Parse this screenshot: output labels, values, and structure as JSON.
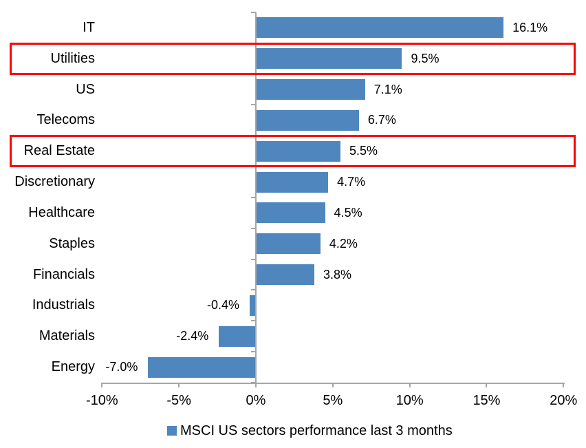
{
  "chart_data": {
    "type": "bar",
    "orientation": "horizontal",
    "title": "",
    "categories": [
      "IT",
      "Utilities",
      "US",
      "Telecoms",
      "Real Estate",
      "Discretionary",
      "Healthcare",
      "Staples",
      "Financials",
      "Industrials",
      "Materials",
      "Energy"
    ],
    "values": [
      16.1,
      9.5,
      7.1,
      6.7,
      5.5,
      4.7,
      4.5,
      4.2,
      3.8,
      -0.4,
      -2.4,
      -7.0
    ],
    "value_labels": [
      "16.1%",
      "9.5%",
      "7.1%",
      "6.7%",
      "5.5%",
      "4.7%",
      "4.5%",
      "4.2%",
      "3.8%",
      "-0.4%",
      "-2.4%",
      "-7.0%"
    ],
    "highlighted_categories": [
      "Utilities",
      "Real Estate"
    ],
    "xlim": [
      -10,
      20
    ],
    "x_ticks": [
      {
        "value": -10,
        "label": "-10%"
      },
      {
        "value": -5,
        "label": "-5%"
      },
      {
        "value": 0,
        "label": "0%"
      },
      {
        "value": 5,
        "label": "5%"
      },
      {
        "value": 10,
        "label": "10%"
      },
      {
        "value": 15,
        "label": "15%"
      },
      {
        "value": 20,
        "label": "20%"
      }
    ],
    "grid": false,
    "legend_position": "bottom",
    "legend": "MSCI US sectors performance last 3 months",
    "colors": {
      "bar": "#4E86BD",
      "highlight_border": "#FF0000",
      "axis": "#A6A6A6",
      "text": "#000000",
      "background": "#FFFFFF"
    }
  }
}
